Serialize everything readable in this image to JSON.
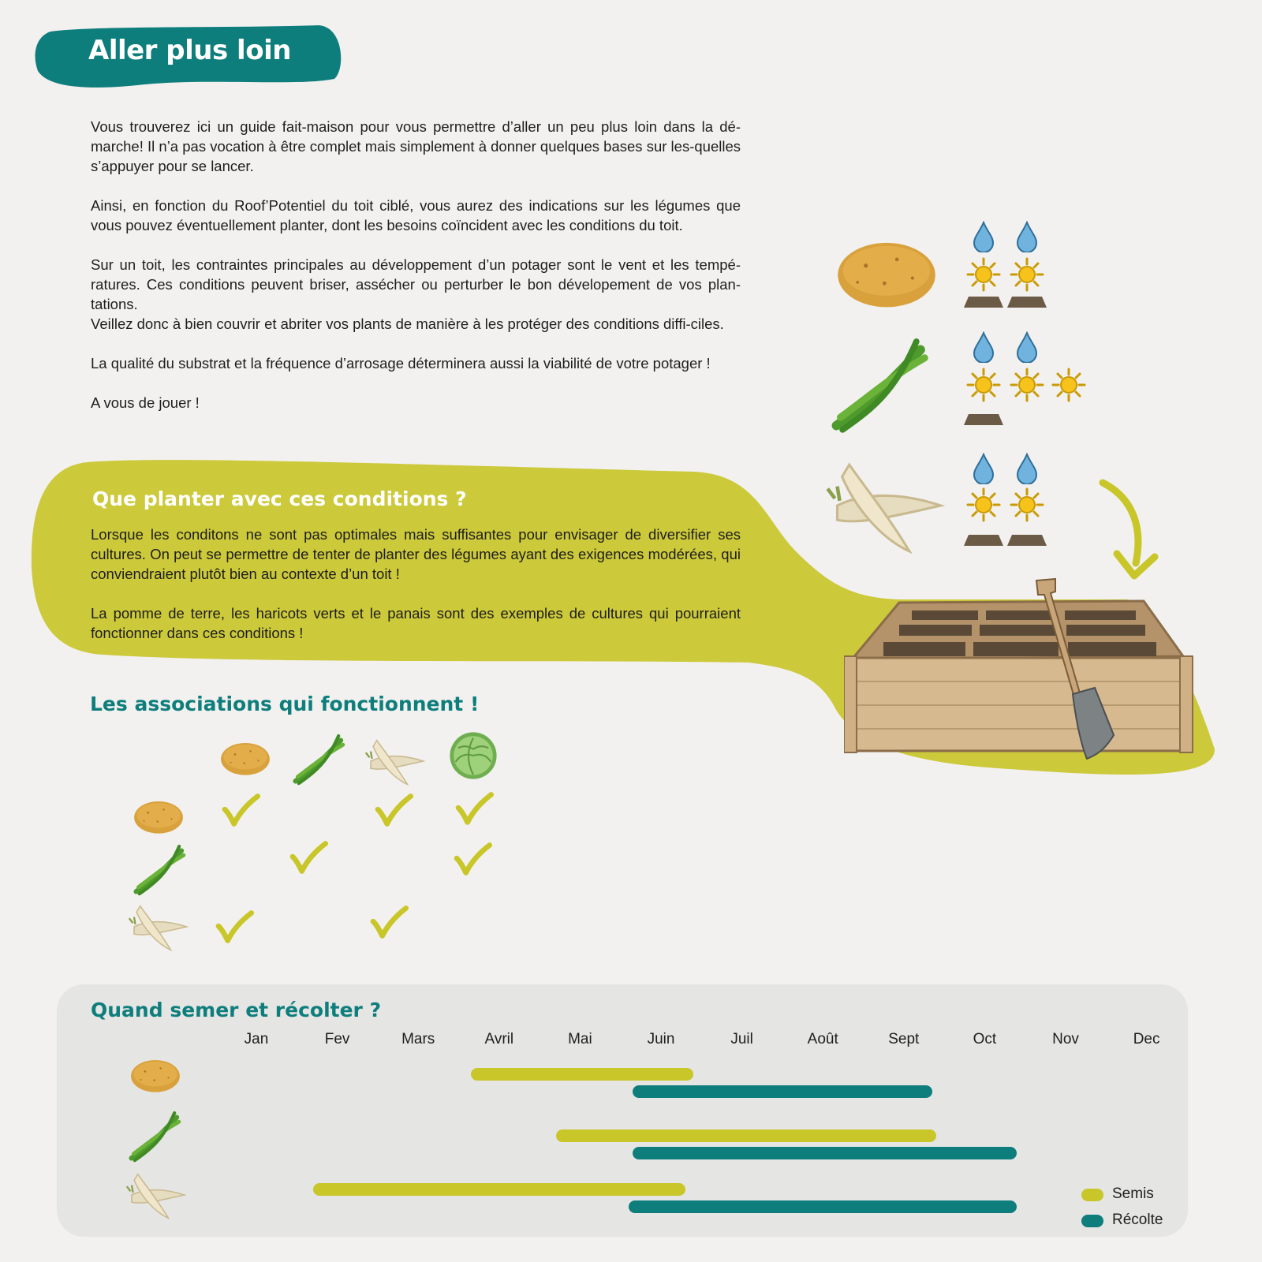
{
  "header": {
    "title": "Aller plus loin"
  },
  "intro": {
    "paragraphs": [
      "Vous trouverez ici un guide fait-maison pour vous permettre d’aller un peu plus loin dans la dé-marche! Il n’a pas vocation à être complet mais simplement à donner quelques bases sur les-quelles s’appuyer pour se lancer.",
      "Ainsi, en fonction du Roof’Potentiel du toit ciblé, vous aurez des indications sur les légumes que vous pouvez éventuellement planter, dont les besoins coïncident avec les conditions du toit.",
      "Sur un toit, les contraintes principales au développement d’un potager sont le vent et les tempé-ratures. Ces conditions peuvent briser, assécher ou perturber le bon dévelopement de vos plan-tations.",
      "Veillez donc à bien couvrir et abriter vos plants de manière à les protéger des conditions diffi-ciles.",
      "La qualité du substrat et la fréquence d’arrosage déterminera aussi la viabilité de votre potager !",
      "A vous de jouer !"
    ]
  },
  "section_conditions": {
    "title": "Que planter avec ces conditions ?",
    "paragraphs": [
      "Lorsque les conditons ne sont pas optimales mais suffisantes pour envisager de diversifier ses cultures. On peut se permettre de tenter de planter des légumes ayant des exigences modérées, qui conviendraient plutôt bien au contexte d’un toit !",
      "La pomme de terre, les haricots verts et le panais sont des exemples de cultures qui pourraient fonctionner dans ces conditions !"
    ]
  },
  "needs": [
    {
      "vegetable": "potato-icon",
      "water": 2,
      "sun": 2,
      "soil": 2
    },
    {
      "vegetable": "green-bean-icon",
      "water": 2,
      "sun": 3,
      "soil": 1
    },
    {
      "vegetable": "parsnip-icon",
      "water": 2,
      "sun": 2,
      "soil": 2
    }
  ],
  "associations": {
    "title": "Les associations qui fonctionnent !",
    "columns": [
      "potato-icon",
      "green-bean-icon",
      "parsnip-icon",
      "cabbage-icon"
    ],
    "rows": [
      {
        "icon": "potato-icon",
        "checks": [
          true,
          false,
          true,
          true
        ]
      },
      {
        "icon": "green-bean-icon",
        "checks": [
          false,
          true,
          false,
          true
        ]
      },
      {
        "icon": "parsnip-icon",
        "checks": [
          true,
          false,
          true,
          false
        ]
      }
    ]
  },
  "calendar": {
    "title": "Quand semer et récolter ?",
    "months": [
      "Jan",
      "Fev",
      "Mars",
      "Avril",
      "Mai",
      "Juin",
      "Juil",
      "Août",
      "Sept",
      "Oct",
      "Nov",
      "Dec"
    ],
    "rows": [
      {
        "icon": "potato-icon",
        "semis": [
          2.65,
          5.4
        ],
        "recolte": [
          4.65,
          8.35
        ]
      },
      {
        "icon": "green-bean-icon",
        "semis": [
          3.7,
          8.4
        ],
        "recolte": [
          4.65,
          9.4
        ]
      },
      {
        "icon": "parsnip-icon",
        "semis": [
          0.7,
          5.3
        ],
        "recolte": [
          4.6,
          9.4
        ]
      }
    ],
    "legend": {
      "semis": "Semis",
      "recolte": "Récolte"
    }
  },
  "colors": {
    "teal": "#0e7e7c",
    "lime": "#c9c62a",
    "background": "#f2f1ef",
    "panel": "#e5e5e4"
  }
}
